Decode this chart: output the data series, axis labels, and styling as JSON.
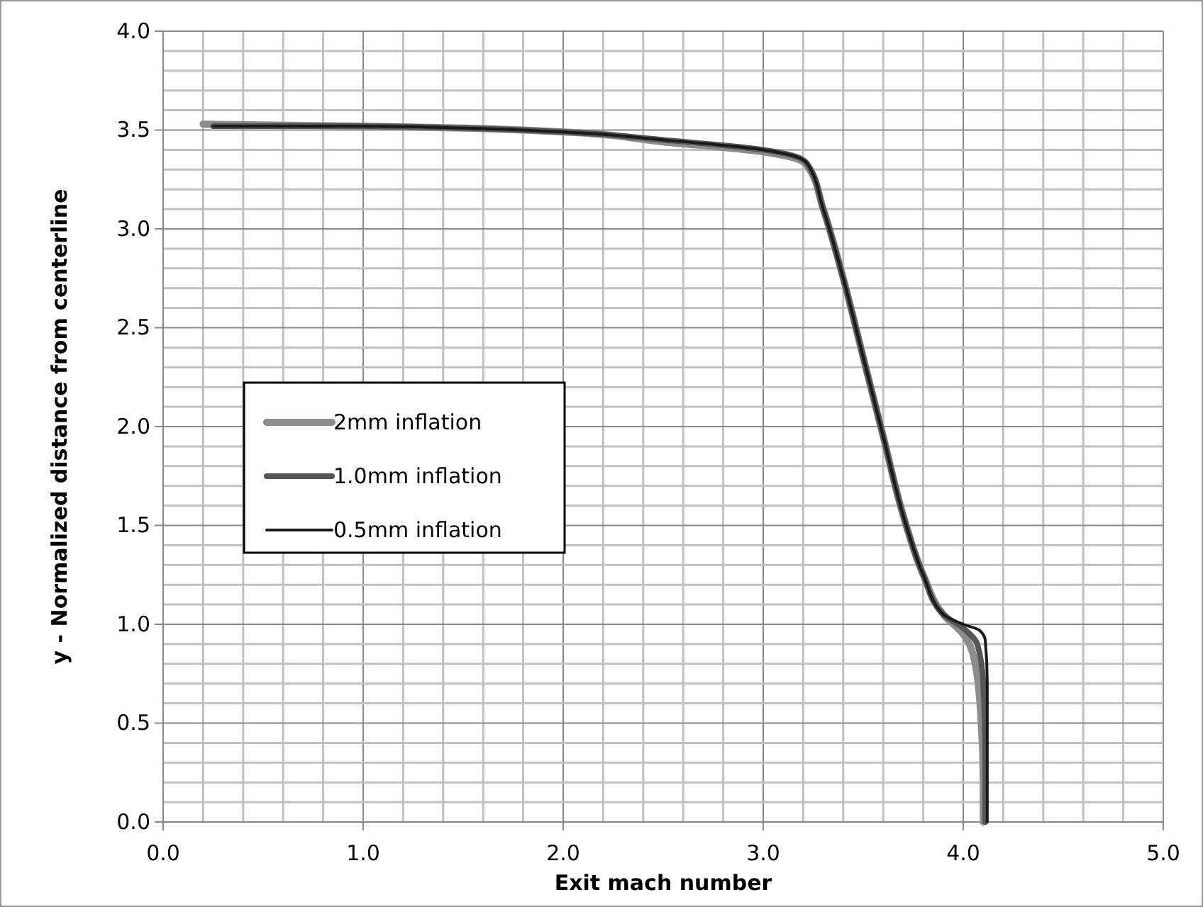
{
  "chart_data": {
    "type": "line",
    "xlabel": "Exit mach number",
    "ylabel": "y - Normalized distance from centerline",
    "xlim": [
      0,
      5
    ],
    "ylim": [
      0,
      4
    ],
    "xticks": [
      {
        "value": 0,
        "label": "0.0"
      },
      {
        "value": 1,
        "label": "1.0"
      },
      {
        "value": 2,
        "label": "2.0"
      },
      {
        "value": 3,
        "label": "3.0"
      },
      {
        "value": 4,
        "label": "4.0"
      },
      {
        "value": 5,
        "label": "5.0"
      }
    ],
    "yticks": [
      {
        "value": 0,
        "label": "0.0"
      },
      {
        "value": 0.5,
        "label": "0.5"
      },
      {
        "value": 1,
        "label": "1.0"
      },
      {
        "value": 1.5,
        "label": "1.5"
      },
      {
        "value": 2,
        "label": "2.0"
      },
      {
        "value": 2.5,
        "label": "2.5"
      },
      {
        "value": 3,
        "label": "3.0"
      },
      {
        "value": 3.5,
        "label": "3.5"
      },
      {
        "value": 4,
        "label": "4.0"
      }
    ],
    "grid": true,
    "legend": "left",
    "marker": "none",
    "line_style": "solid",
    "series": [
      {
        "name": "2mm inflation",
        "color": "#8c8c8c",
        "x": [
          0.2,
          1.0,
          1.5,
          2.0,
          2.5,
          3.0,
          3.15,
          3.22,
          3.3,
          3.4,
          3.5,
          3.6,
          3.7,
          3.8,
          3.9,
          4.0,
          4.06,
          4.09,
          4.1,
          4.1
        ],
        "values": [
          3.53,
          3.52,
          3.51,
          3.49,
          3.44,
          3.39,
          3.36,
          3.32,
          3.1,
          2.75,
          2.35,
          1.95,
          1.55,
          1.25,
          1.05,
          0.95,
          0.8,
          0.5,
          0.2,
          0.0
        ]
      },
      {
        "name": "1.0mm inflation",
        "color": "#555555",
        "x": [
          0.25,
          1.0,
          1.5,
          2.0,
          2.5,
          3.0,
          3.15,
          3.22,
          3.3,
          3.4,
          3.5,
          3.6,
          3.7,
          3.8,
          3.9,
          4.0,
          4.07,
          4.1,
          4.11,
          4.11
        ],
        "values": [
          3.52,
          3.52,
          3.51,
          3.49,
          3.45,
          3.4,
          3.37,
          3.33,
          3.1,
          2.75,
          2.35,
          1.95,
          1.55,
          1.25,
          1.05,
          0.98,
          0.9,
          0.7,
          0.3,
          0.0
        ]
      },
      {
        "name": "0.5mm inflation",
        "color": "#1a1a1a",
        "x": [
          0.25,
          1.0,
          1.5,
          2.0,
          2.5,
          3.0,
          3.15,
          3.22,
          3.3,
          3.4,
          3.5,
          3.6,
          3.7,
          3.8,
          3.9,
          4.0,
          4.08,
          4.11,
          4.12,
          4.12
        ],
        "values": [
          3.52,
          3.52,
          3.51,
          3.49,
          3.45,
          3.4,
          3.37,
          3.33,
          3.1,
          2.75,
          2.35,
          1.95,
          1.55,
          1.25,
          1.05,
          1.0,
          0.97,
          0.92,
          0.7,
          0.0
        ]
      }
    ]
  }
}
